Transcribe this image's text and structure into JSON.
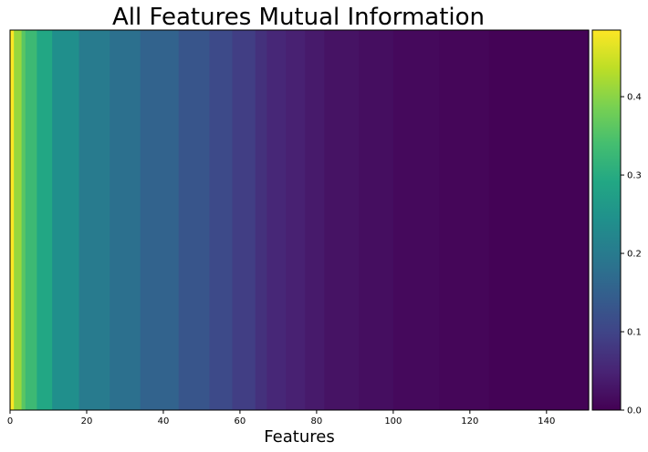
{
  "chart_data": {
    "type": "heatmap",
    "title": "All Features Mutual Information",
    "xlabel": "Features",
    "ylabel": "",
    "xlim": [
      0,
      151
    ],
    "x_ticks": [
      0,
      20,
      40,
      60,
      80,
      100,
      120,
      140
    ],
    "x_tick_labels": [
      "0",
      "20",
      "40",
      "60",
      "80",
      "100",
      "120",
      "140"
    ],
    "colormap": "viridis",
    "colorbar": {
      "vmin": 0.0,
      "vmax": 0.485,
      "ticks": [
        0.0,
        0.1,
        0.2,
        0.3,
        0.4
      ],
      "tick_labels": [
        "0.0",
        "0.1",
        "0.2",
        "0.3",
        "0.4"
      ],
      "position": "right"
    },
    "grid": false,
    "segments": [
      {
        "start": 0,
        "end": 1,
        "value": 0.485
      },
      {
        "start": 1,
        "end": 3,
        "value": 0.41
      },
      {
        "start": 3,
        "end": 4,
        "value": 0.36
      },
      {
        "start": 4,
        "end": 7,
        "value": 0.33
      },
      {
        "start": 7,
        "end": 11,
        "value": 0.29
      },
      {
        "start": 11,
        "end": 18,
        "value": 0.24
      },
      {
        "start": 18,
        "end": 26,
        "value": 0.2
      },
      {
        "start": 26,
        "end": 34,
        "value": 0.18
      },
      {
        "start": 34,
        "end": 44,
        "value": 0.155
      },
      {
        "start": 44,
        "end": 52,
        "value": 0.13
      },
      {
        "start": 52,
        "end": 58,
        "value": 0.11
      },
      {
        "start": 58,
        "end": 64,
        "value": 0.09
      },
      {
        "start": 64,
        "end": 67,
        "value": 0.07
      },
      {
        "start": 67,
        "end": 72,
        "value": 0.055
      },
      {
        "start": 72,
        "end": 77,
        "value": 0.045
      },
      {
        "start": 77,
        "end": 82,
        "value": 0.035
      },
      {
        "start": 82,
        "end": 91,
        "value": 0.025
      },
      {
        "start": 91,
        "end": 100,
        "value": 0.018
      },
      {
        "start": 100,
        "end": 112,
        "value": 0.012
      },
      {
        "start": 112,
        "end": 125,
        "value": 0.007
      },
      {
        "start": 125,
        "end": 151,
        "value": 0.003
      }
    ]
  }
}
